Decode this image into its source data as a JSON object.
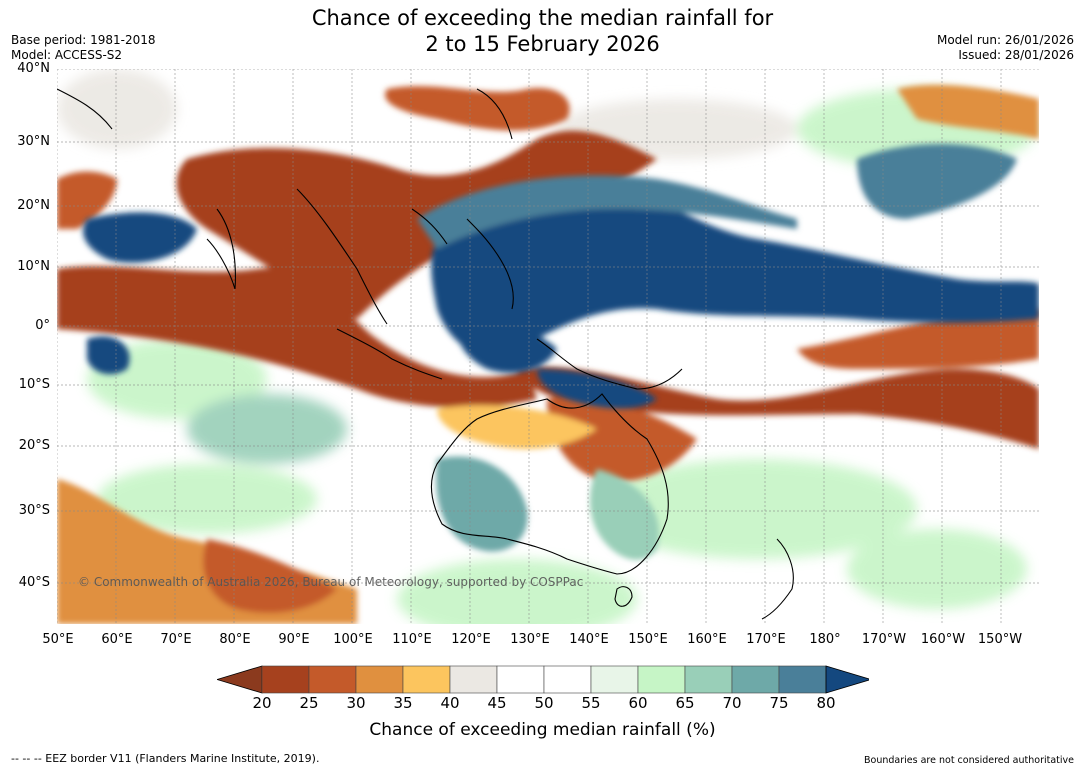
{
  "title": {
    "line1": "Chance of exceeding the median rainfall for",
    "line2": "2 to 15 February 2026"
  },
  "meta": {
    "base_period": "Base period: 1981-2018",
    "model": "Model: ACCESS-S2",
    "model_run": "Model run: 26/01/2026",
    "issued": "Issued: 28/01/2026"
  },
  "map": {
    "lat_labels": [
      "40°N",
      "30°N",
      "20°N",
      "10°N",
      "0°",
      "10°S",
      "20°S",
      "30°S",
      "40°S"
    ],
    "lon_labels": [
      "50°E",
      "60°E",
      "70°E",
      "80°E",
      "90°E",
      "100°E",
      "110°E",
      "120°E",
      "130°E",
      "140°E",
      "150°E",
      "160°E",
      "170°E",
      "180°",
      "170°W",
      "160°W",
      "150°W"
    ],
    "credit": "© Commonwealth of Australia 2026, Bureau of Meteorology, supported by COSPPac"
  },
  "colorbar": {
    "ticks": [
      "20",
      "25",
      "30",
      "35",
      "40",
      "45",
      "50",
      "55",
      "60",
      "65",
      "70",
      "75",
      "80"
    ],
    "colors": [
      "#8b3a1e",
      "#a6411e",
      "#c45a2a",
      "#e0903f",
      "#fcc55e",
      "#ebe8e3",
      "#ffffff",
      "#ffffff",
      "#e8f5e8",
      "#c6f5c6",
      "#99cfb8",
      "#6ea9a8",
      "#4a7f99",
      "#14487f"
    ],
    "label": "Chance of exceeding median rainfall (%)"
  },
  "footer": {
    "left": "--  --  -- EEZ border V11 (Flanders Marine Institute, 2019).",
    "right": "Boundaries are not considered authoritative"
  }
}
